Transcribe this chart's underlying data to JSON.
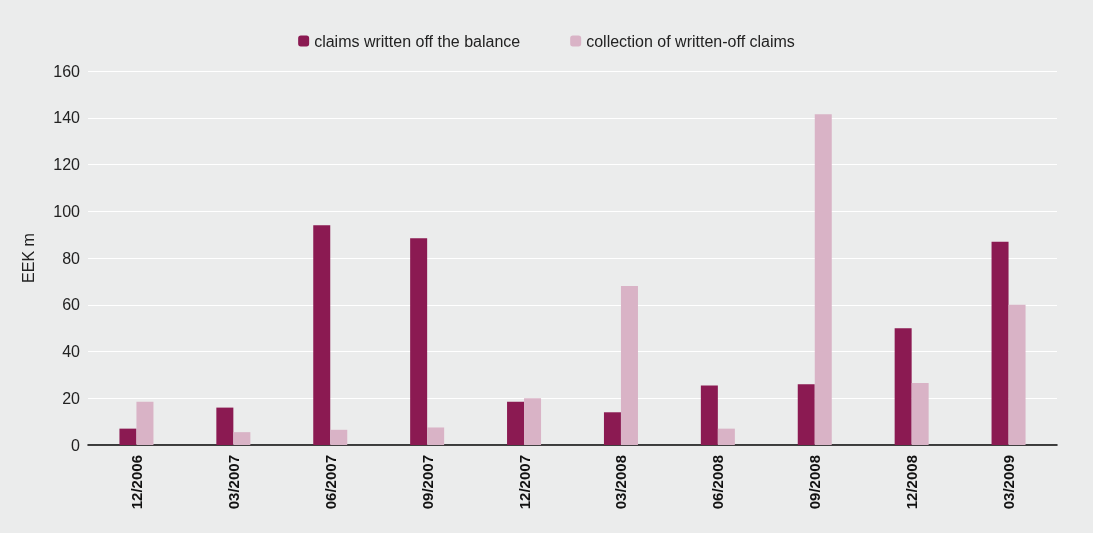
{
  "chart_data": {
    "type": "bar",
    "ylabel": "EEK m",
    "categories": [
      "12/2006",
      "03/2007",
      "06/2007",
      "09/2007",
      "12/2007",
      "03/2008",
      "06/2008",
      "09/2008",
      "12/2008",
      "03/2009"
    ],
    "series": [
      {
        "name": "claims written off the balance",
        "color": "#8b1a52",
        "values": [
          7,
          16,
          94,
          88.5,
          18.5,
          14,
          25.5,
          26,
          50,
          87
        ]
      },
      {
        "name": "collection of written-off claims",
        "color": "#d9b3c6",
        "values": [
          18.5,
          5.5,
          6.5,
          7.5,
          20,
          68,
          7,
          141.5,
          26.5,
          60
        ]
      }
    ],
    "ylim": [
      0,
      160
    ],
    "yticks": [
      0,
      20,
      40,
      60,
      80,
      100,
      120,
      140,
      160
    ],
    "grid": "y",
    "legend": "top"
  }
}
